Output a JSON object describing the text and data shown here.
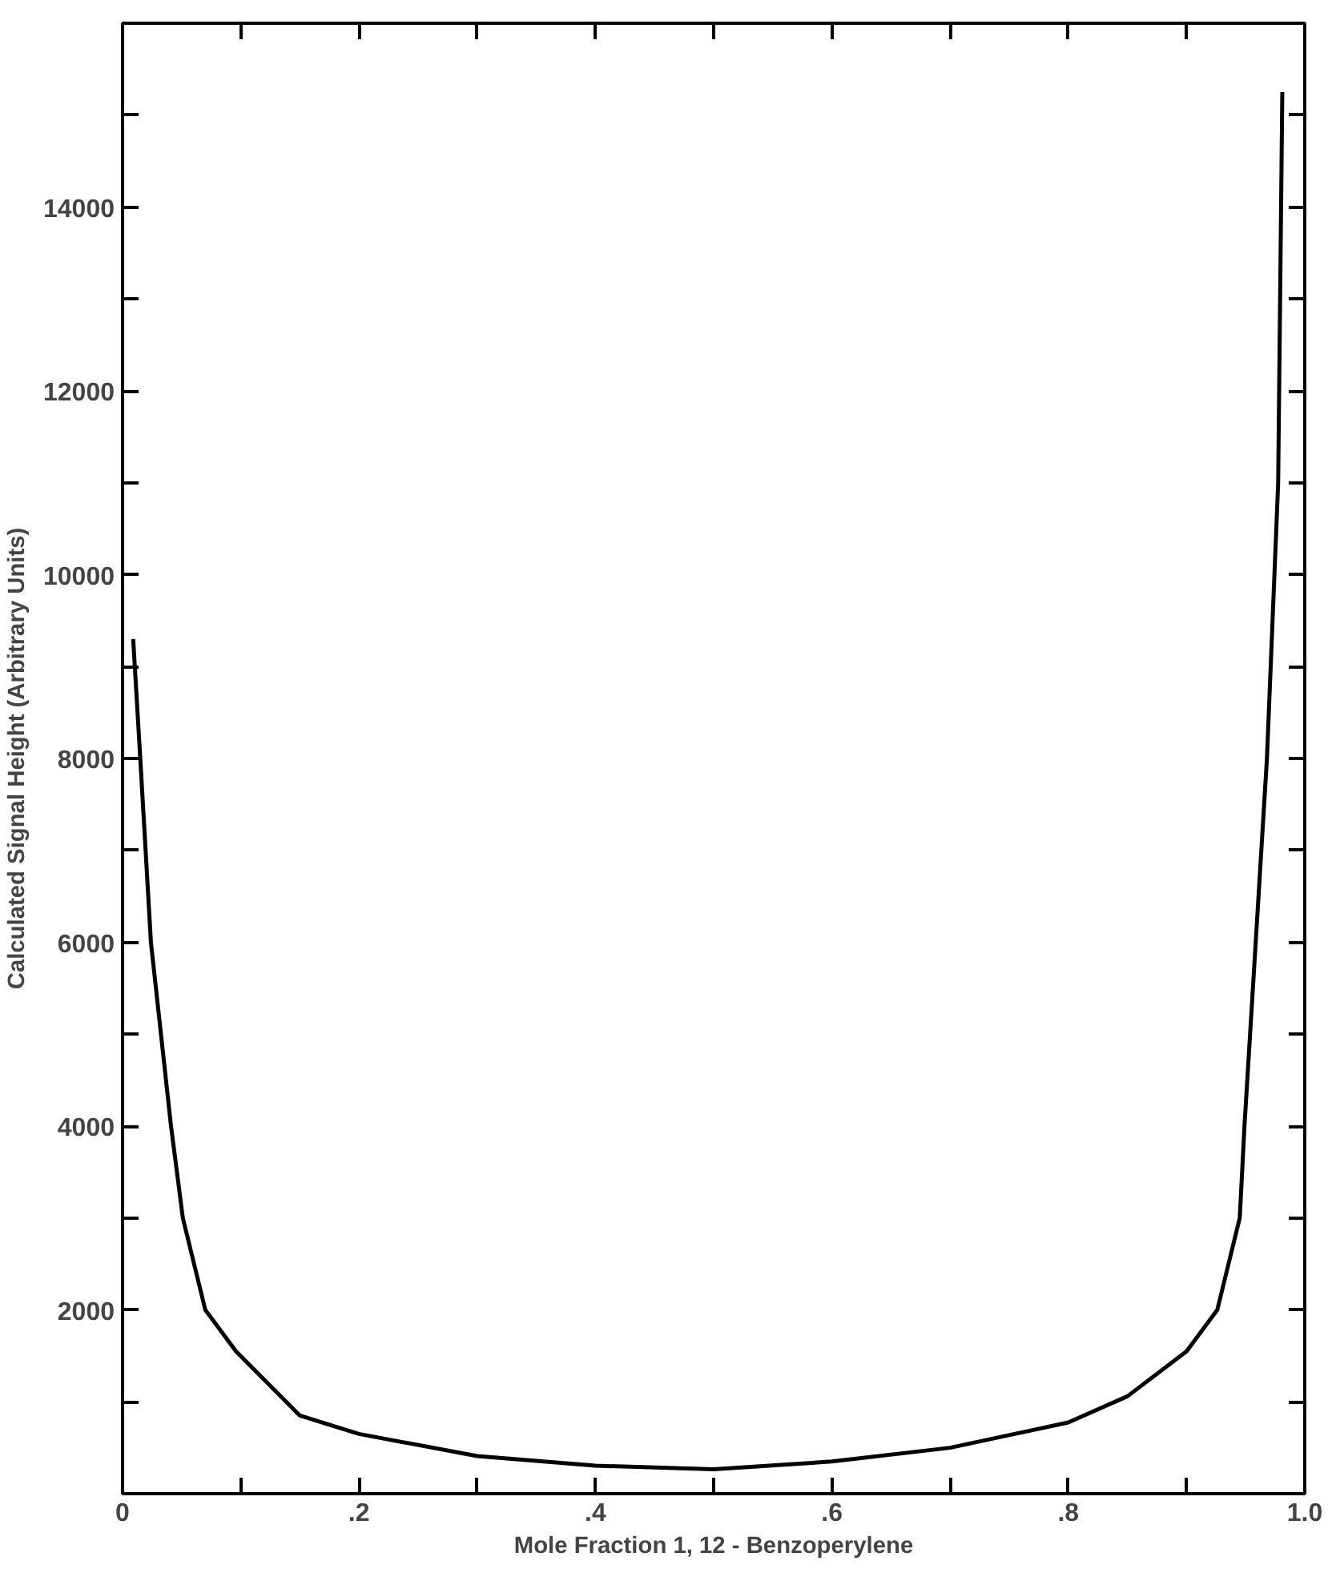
{
  "chart_data": {
    "type": "line",
    "xlabel": "Mole Fraction 1, 12 - Benzoperylene",
    "ylabel": "Calculated Signal Height (Arbitrary Units)",
    "xlim": [
      0,
      1.0
    ],
    "ylim": [
      0,
      16000
    ],
    "xticks": [
      0,
      {
        "value": 0.1,
        "label": null
      },
      {
        "value": 0.2,
        "label": ".2"
      },
      {
        "value": 0.3,
        "label": null
      },
      {
        "value": 0.4,
        "label": ".4"
      },
      {
        "value": 0.5,
        "label": null
      },
      {
        "value": 0.6,
        "label": ".6"
      },
      {
        "value": 0.7,
        "label": null
      },
      {
        "value": 0.8,
        "label": ".8"
      },
      {
        "value": 0.9,
        "label": null
      },
      {
        "value": 1.0,
        "label": "1.0"
      }
    ],
    "yticks": [
      {
        "value": 1000,
        "label": null
      },
      2000,
      {
        "value": 3000,
        "label": null
      },
      4000,
      {
        "value": 5000,
        "label": null
      },
      6000,
      {
        "value": 7000,
        "label": null
      },
      8000,
      {
        "value": 9000,
        "label": null
      },
      10000,
      {
        "value": 11000,
        "label": null
      },
      12000,
      {
        "value": 13000,
        "label": null
      },
      14000,
      {
        "value": 15000,
        "label": null
      }
    ],
    "grid": false,
    "marker": "none",
    "line_style": "solid",
    "series": [
      {
        "color": "#000000",
        "x": [
          0.009,
          0.015,
          0.024,
          0.041,
          0.051,
          0.07,
          0.096,
          0.15,
          0.2,
          0.3,
          0.4,
          0.5,
          0.6,
          0.7,
          0.8,
          0.85,
          0.9,
          0.926,
          0.945,
          0.949,
          0.968,
          0.9775,
          0.981
        ],
        "values": [
          9300,
          8000,
          6000,
          4000,
          3000,
          2000,
          1550,
          850,
          650,
          410,
          305,
          265,
          350,
          500,
          775,
          1060,
          1550,
          2000,
          3000,
          4000,
          8000,
          11000,
          15250
        ]
      }
    ]
  }
}
